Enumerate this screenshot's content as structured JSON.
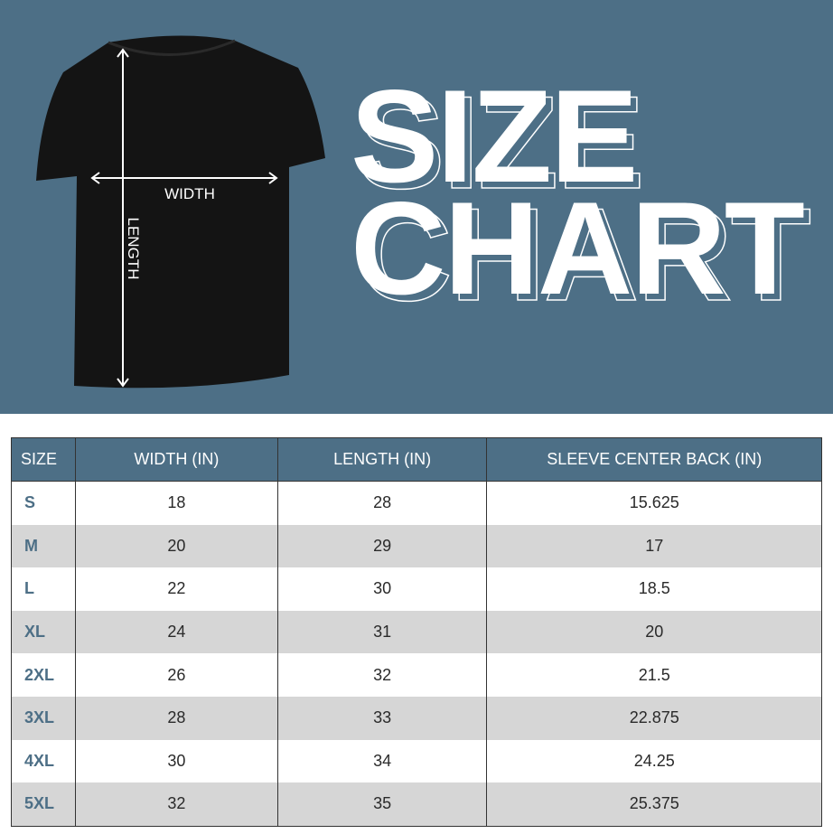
{
  "banner": {
    "title_line1": "SIZE",
    "title_line2": "CHART",
    "width_label": "WIDTH",
    "length_label": "LENGTH",
    "background_color": "#4d6f86"
  },
  "table": {
    "headers": [
      "SIZE",
      "WIDTH (IN)",
      "LENGTH (IN)",
      "SLEEVE CENTER BACK (IN)"
    ],
    "rows": [
      [
        "S",
        "18",
        "28",
        "15.625"
      ],
      [
        "M",
        "20",
        "29",
        "17"
      ],
      [
        "L",
        "22",
        "30",
        "18.5"
      ],
      [
        "XL",
        "24",
        "31",
        "20"
      ],
      [
        "2XL",
        "26",
        "32",
        "21.5"
      ],
      [
        "3XL",
        "28",
        "33",
        "22.875"
      ],
      [
        "4XL",
        "30",
        "34",
        "24.25"
      ],
      [
        "5XL",
        "32",
        "35",
        "25.375"
      ]
    ]
  }
}
